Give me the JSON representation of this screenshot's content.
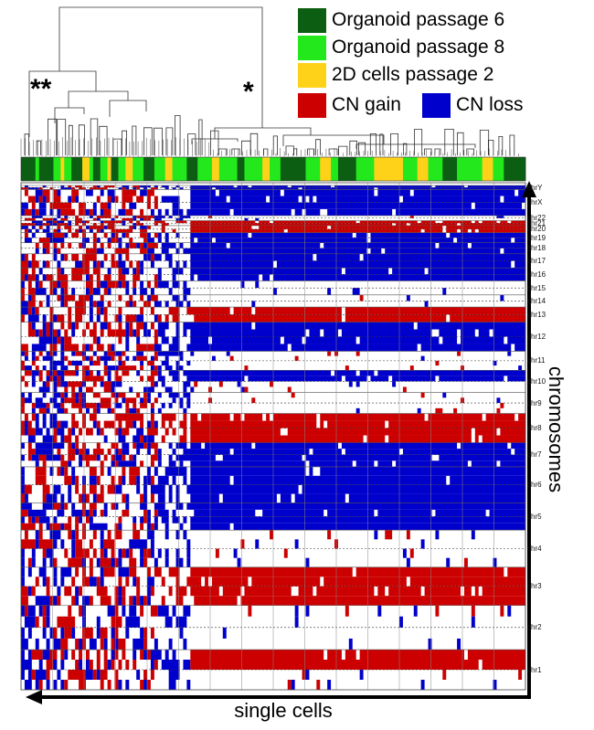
{
  "legend": {
    "items": [
      {
        "label": "Organoid passage 6",
        "color": "#0b5e12"
      },
      {
        "label": "Organoid passage 8",
        "color": "#22e81c"
      },
      {
        "label": "2D cells passage 2",
        "color": "#ffd21a"
      }
    ],
    "cn": [
      {
        "label": "CN gain",
        "color": "#cc0000"
      },
      {
        "label": "CN loss",
        "color": "#0000cc"
      }
    ]
  },
  "clusters": {
    "left_marker": "**",
    "right_marker": "*"
  },
  "axes": {
    "x_title": "single cells",
    "y_title": "chromosomes"
  },
  "chromosomes": [
    "chrY",
    "chrX",
    "chr22",
    "chr21",
    "chr20",
    "chr19",
    "chr18",
    "chr17",
    "chr16",
    "chr15",
    "chr14",
    "chr13",
    "chr12",
    "chr11",
    "chr10",
    "chr9",
    "chr8",
    "chr7",
    "chr6",
    "chr5",
    "chr4",
    "chr3",
    "chr2",
    "chr1"
  ]
}
